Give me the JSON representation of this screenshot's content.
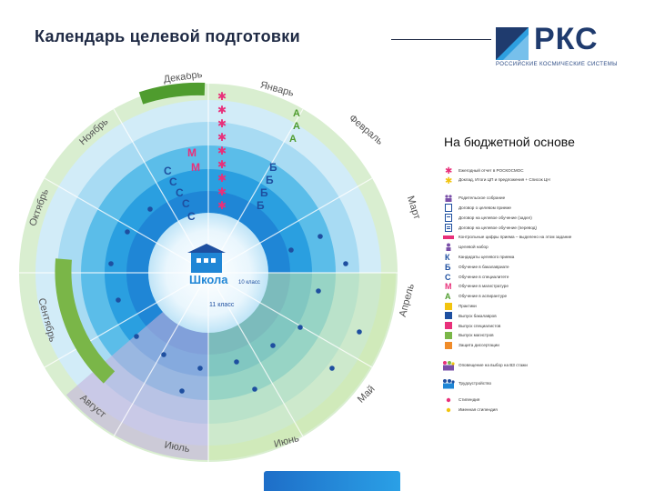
{
  "title": "Календарь целевой подготовки",
  "logo": {
    "brand": "РКС",
    "tagline": "РОССИЙСКИЕ КОСМИЧЕСКИЕ СИСТЕМЫ"
  },
  "subtitle": "На бюджетной основе",
  "months": [
    "Декабрь",
    "Январь",
    "Февраль",
    "Март",
    "Апрель",
    "Май",
    "Июнь",
    "Июль",
    "Август",
    "Сентябрь",
    "Октябрь",
    "Ноябрь"
  ],
  "center_label": "Школа",
  "class_labels": [
    "11 класс",
    "10 класс"
  ],
  "legend": [
    {
      "icon": "star-red-icon",
      "label": "Ежегодный отчет в РОСКОСМОС"
    },
    {
      "icon": "star-yellow-icon",
      "label": "Доклад, Итоги ЦП и предложения + Список ЦН"
    },
    {
      "icon": "parents-icon",
      "label": "Родительское собрание"
    },
    {
      "icon": "contract-icon",
      "label": "Договор о целевом приеме"
    },
    {
      "icon": "contract-s-icon",
      "label": "Договор на целевое обучение (задел)"
    },
    {
      "icon": "contract-d-icon",
      "label": "Договор на целевое обучение (перевод)"
    },
    {
      "icon": "bar-icon",
      "label": "Контрольные цифры приема – выделено на этом задание"
    },
    {
      "icon": "person-icon",
      "label": "Целевой набор"
    },
    {
      "icon": "letter-k-icon",
      "label": "Кандидаты целевого приема"
    },
    {
      "icon": "letter-b-icon",
      "label": "Обучение в бакалавриате"
    },
    {
      "icon": "letter-s-icon",
      "label": "Обучение в специалитете"
    },
    {
      "icon": "letter-m-icon",
      "label": "Обучение в магистратуре"
    },
    {
      "icon": "letter-a-icon",
      "label": "Обучение в аспирантуре"
    },
    {
      "icon": "practice-icon",
      "label": "Практики"
    },
    {
      "icon": "graduates-icon",
      "label": "Выпуск бакалавров"
    },
    {
      "icon": "specialists-icon",
      "label": "Выпуск специалистов"
    },
    {
      "icon": "masters-icon",
      "label": "Выпуск магистров"
    },
    {
      "icon": "defense-icon",
      "label": "Защита диссертации"
    },
    {
      "icon": "family-icon",
      "label": "Оповещение на выбор на ВЗ стажи"
    },
    {
      "icon": "team-icon",
      "label": "Трудоустройство"
    },
    {
      "icon": "dot-pink-icon",
      "label": "Стипендия"
    },
    {
      "icon": "dot-yellow-icon",
      "label": "Именная стипендия"
    }
  ],
  "colors": {
    "green": "#7ab648",
    "purple": "#b79fd0",
    "pink": "#e8307a",
    "blue": "#1f86d6",
    "cyan": "#3fb7ec",
    "darkblue": "#1e4fa0",
    "text": "#1f2a44"
  }
}
